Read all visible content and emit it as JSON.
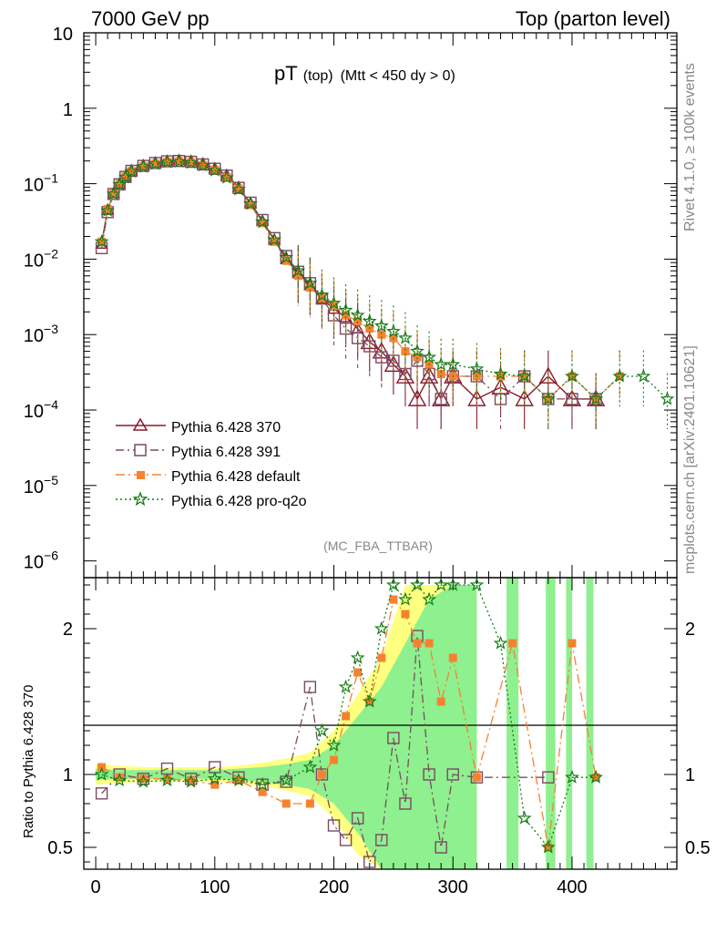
{
  "header": {
    "left": "7000 GeV pp",
    "right": "Top (parton level)"
  },
  "side_labels": {
    "rivet": "Rivet 4.1.0, ≥ 100k events",
    "mcplots": "mcplots.cern.ch [arXiv:2401.10621]"
  },
  "plot": {
    "title_main": "pT",
    "title_sub": "(top)",
    "title_cut": "(Mtt < 450 dy > 0)",
    "analysis_tag": "(MC_FBA_TTBAR)"
  },
  "colors": {
    "p370": "#8b1a2b",
    "p391": "#7a4a63",
    "pdefault": "#f58230",
    "pq2o": "#137c13",
    "band_yellow": "#ffff80",
    "band_green": "#8ef08e"
  },
  "chart_data": [
    {
      "type": "line",
      "title": "pT (top) (Mtt < 450 dy > 0)",
      "xlabel": "",
      "ylabel": "",
      "yscale": "log",
      "xlim": [
        -10,
        488
      ],
      "ylim": [
        6e-07,
        10
      ],
      "yticks": [
        {
          "value": 10,
          "base": "10",
          "exp": ""
        },
        {
          "value": 1,
          "base": "1",
          "exp": ""
        },
        {
          "value": 0.1,
          "base": "10",
          "exp": "−1"
        },
        {
          "value": 0.01,
          "base": "10",
          "exp": "−2"
        },
        {
          "value": 0.001,
          "base": "10",
          "exp": "−3"
        },
        {
          "value": 0.0001,
          "base": "10",
          "exp": "−4"
        },
        {
          "value": 1e-05,
          "base": "10",
          "exp": "−5"
        },
        {
          "value": 1e-06,
          "base": "10",
          "exp": "−6"
        }
      ],
      "legend_position": "bottom-left",
      "series": [
        {
          "name": "Pythia 6.428 370",
          "x": [
            5,
            10,
            15,
            20,
            25,
            30,
            40,
            50,
            60,
            70,
            80,
            90,
            100,
            110,
            120,
            130,
            140,
            150,
            160,
            170,
            180,
            190,
            200,
            210,
            220,
            230,
            240,
            250,
            260,
            270,
            280,
            290,
            300,
            320,
            340,
            360,
            380,
            400,
            420
          ],
          "values": [
            0.016,
            0.045,
            0.075,
            0.1,
            0.125,
            0.15,
            0.175,
            0.19,
            0.2,
            0.205,
            0.2,
            0.185,
            0.16,
            0.13,
            0.09,
            0.055,
            0.032,
            0.018,
            0.01,
            0.0065,
            0.0045,
            0.003,
            0.0022,
            0.0017,
            0.0012,
            0.0008,
            0.0006,
            0.0004,
            0.00028,
            0.00014,
            0.00028,
            0.00014,
            0.00028,
            0.00014,
            0.0002,
            0.00014,
            0.00028,
            0.00014,
            0.00014
          ]
        },
        {
          "name": "Pythia 6.428 391",
          "x": [
            5,
            10,
            15,
            20,
            25,
            30,
            40,
            50,
            60,
            70,
            80,
            90,
            100,
            110,
            120,
            130,
            140,
            150,
            160,
            170,
            180,
            190,
            200,
            210,
            220,
            230,
            240,
            250,
            260,
            270,
            280,
            290,
            300,
            320,
            340,
            360,
            380,
            400,
            420
          ],
          "values": [
            0.014,
            0.042,
            0.073,
            0.098,
            0.123,
            0.148,
            0.172,
            0.188,
            0.198,
            0.2,
            0.195,
            0.18,
            0.158,
            0.128,
            0.088,
            0.056,
            0.033,
            0.019,
            0.011,
            0.0068,
            0.0048,
            0.003,
            0.0018,
            0.0012,
            0.0009,
            0.0007,
            0.0005,
            0.00045,
            0.0003,
            0.00045,
            0.0003,
            0.00014,
            0.00028,
            0.00028,
            0.00014,
            0.00028,
            0.00014,
            0.00014,
            0.00014
          ]
        },
        {
          "name": "Pythia 6.428 default",
          "x": [
            5,
            10,
            15,
            20,
            25,
            30,
            40,
            50,
            60,
            70,
            80,
            90,
            100,
            110,
            120,
            130,
            140,
            150,
            160,
            170,
            180,
            190,
            200,
            210,
            220,
            230,
            240,
            250,
            260,
            270,
            280,
            290,
            300,
            320,
            340,
            360,
            380,
            400,
            420,
            440
          ],
          "values": [
            0.017,
            0.046,
            0.074,
            0.099,
            0.124,
            0.147,
            0.17,
            0.185,
            0.195,
            0.198,
            0.192,
            0.176,
            0.152,
            0.122,
            0.086,
            0.052,
            0.03,
            0.017,
            0.0095,
            0.006,
            0.0042,
            0.003,
            0.0024,
            0.0018,
            0.0015,
            0.0012,
            0.001,
            0.0009,
            0.0006,
            0.0005,
            0.0004,
            0.0003,
            0.00028,
            0.00028,
            0.00028,
            0.00028,
            0.00014,
            0.00028,
            0.00014,
            0.00028
          ]
        },
        {
          "name": "Pythia 6.428 pro-q2o",
          "x": [
            5,
            10,
            15,
            20,
            25,
            30,
            40,
            50,
            60,
            70,
            80,
            90,
            100,
            110,
            120,
            130,
            140,
            150,
            160,
            170,
            180,
            190,
            200,
            210,
            220,
            230,
            240,
            250,
            260,
            270,
            280,
            290,
            300,
            320,
            340,
            360,
            380,
            400,
            420,
            440,
            460,
            480
          ],
          "values": [
            0.017,
            0.044,
            0.073,
            0.097,
            0.122,
            0.145,
            0.168,
            0.183,
            0.193,
            0.196,
            0.19,
            0.175,
            0.15,
            0.12,
            0.084,
            0.054,
            0.031,
            0.018,
            0.0105,
            0.007,
            0.0048,
            0.0033,
            0.0026,
            0.0021,
            0.0018,
            0.0015,
            0.0013,
            0.0011,
            0.0009,
            0.0006,
            0.0005,
            0.0004,
            0.0004,
            0.00035,
            0.0003,
            0.00028,
            0.00014,
            0.00028,
            0.00014,
            0.00028,
            0.00028,
            0.00014
          ]
        }
      ]
    },
    {
      "type": "line",
      "title": "",
      "xlabel": "",
      "ylabel": "Ratio to Pythia 6.428 370",
      "xlim": [
        -10,
        488
      ],
      "ylim": [
        0.35,
        2.35
      ],
      "xticks": [
        0,
        100,
        200,
        300,
        400
      ],
      "yticks": [
        0.5,
        1,
        2
      ],
      "bands": {
        "yellow": {
          "x": [
            0,
            20,
            40,
            60,
            80,
            100,
            120,
            140,
            160,
            180,
            200,
            220,
            240,
            260,
            280,
            300,
            320
          ],
          "lo": [
            0.93,
            0.94,
            0.95,
            0.95,
            0.95,
            0.95,
            0.94,
            0.92,
            0.89,
            0.85,
            0.7,
            0.45,
            0.35,
            0.35,
            0.35,
            0.35,
            0.35
          ],
          "hi": [
            1.07,
            1.06,
            1.05,
            1.05,
            1.05,
            1.05,
            1.06,
            1.08,
            1.11,
            1.15,
            1.3,
            1.55,
            1.8,
            2.3,
            2.3,
            2.3,
            2.3
          ]
        },
        "green": {
          "x": [
            0,
            20,
            40,
            60,
            80,
            100,
            120,
            140,
            160,
            180,
            200,
            220,
            240,
            260,
            280,
            300,
            320
          ],
          "lo": [
            0.96,
            0.97,
            0.97,
            0.97,
            0.97,
            0.97,
            0.96,
            0.95,
            0.93,
            0.9,
            0.8,
            0.6,
            0.35,
            0.35,
            0.35,
            0.35,
            0.35
          ],
          "hi": [
            1.04,
            1.03,
            1.03,
            1.03,
            1.03,
            1.03,
            1.04,
            1.05,
            1.07,
            1.1,
            1.2,
            1.4,
            1.6,
            1.9,
            2.2,
            2.3,
            2.3
          ]
        }
      },
      "series": [
        {
          "name": "Pythia 6.428 391",
          "x": [
            5,
            20,
            40,
            60,
            80,
            100,
            120,
            140,
            160,
            180,
            190,
            200,
            210,
            220,
            230,
            240,
            250,
            260,
            270,
            280,
            290,
            300,
            320,
            380
          ],
          "values": [
            0.87,
            1.0,
            0.97,
            1.04,
            0.97,
            1.05,
            0.98,
            0.93,
            0.95,
            1.6,
            1.0,
            0.65,
            0.55,
            0.7,
            0.4,
            0.55,
            1.25,
            0.8,
            1.95,
            1.0,
            0.5,
            1.0,
            0.98,
            0.98
          ]
        },
        {
          "name": "Pythia 6.428 default",
          "x": [
            5,
            20,
            40,
            60,
            80,
            100,
            120,
            140,
            160,
            180,
            190,
            200,
            210,
            220,
            230,
            240,
            250,
            260,
            270,
            280,
            290,
            300,
            320,
            350,
            380,
            400,
            420
          ],
          "values": [
            1.05,
            0.98,
            0.97,
            0.97,
            0.96,
            0.93,
            0.96,
            0.88,
            0.8,
            0.8,
            1.0,
            1.1,
            1.4,
            1.7,
            1.5,
            1.8,
            2.2,
            2.1,
            1.9,
            1.9,
            1.5,
            1.8,
            0.98,
            1.9,
            0.5,
            1.9,
            0.98
          ]
        },
        {
          "name": "Pythia 6.428 pro-q2o",
          "x": [
            5,
            20,
            40,
            60,
            80,
            100,
            120,
            140,
            160,
            180,
            190,
            200,
            210,
            220,
            230,
            240,
            250,
            260,
            270,
            280,
            290,
            300,
            320,
            340,
            360,
            380,
            400,
            420
          ],
          "values": [
            1.0,
            0.96,
            0.95,
            0.96,
            0.95,
            0.97,
            0.96,
            0.93,
            0.96,
            1.05,
            1.3,
            1.2,
            1.6,
            1.8,
            1.5,
            2.0,
            2.3,
            2.2,
            2.3,
            2.2,
            2.3,
            2.3,
            2.3,
            1.9,
            0.7,
            0.5,
            0.98,
            0.98
          ]
        }
      ]
    }
  ]
}
